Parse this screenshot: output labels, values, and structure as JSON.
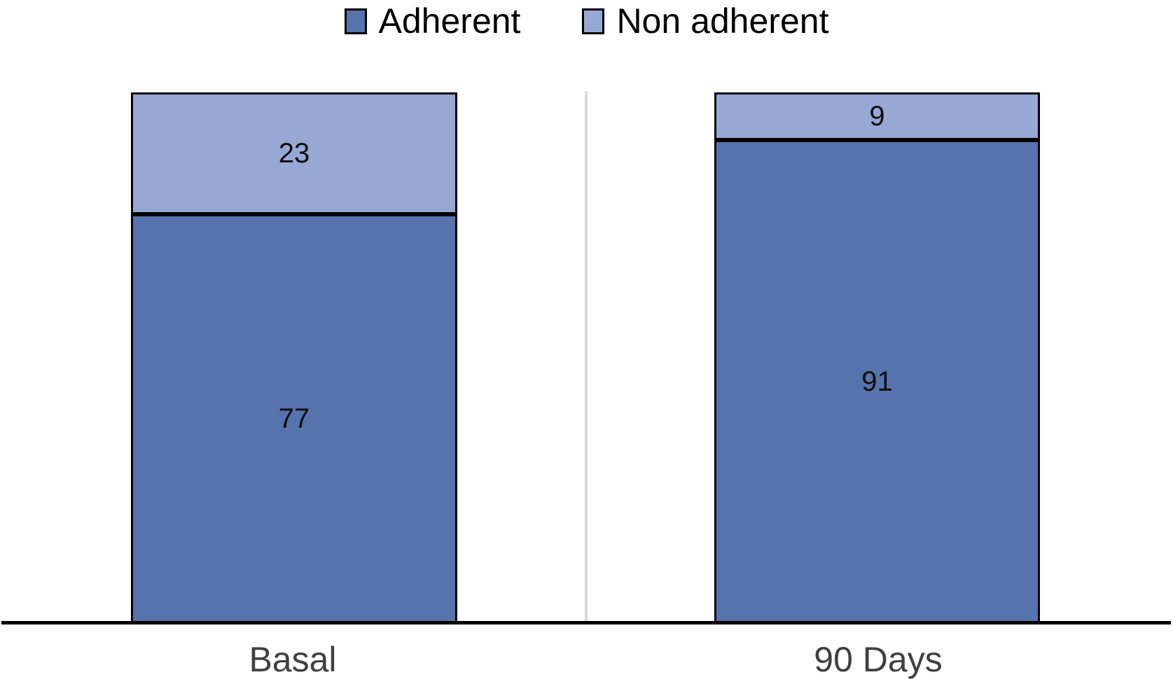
{
  "chart_data": {
    "type": "bar",
    "stacked": true,
    "orientation": "vertical",
    "title": "",
    "xlabel": "",
    "ylabel": "",
    "ylim": [
      0,
      100
    ],
    "grid": false,
    "legend_position": "top-center",
    "data_labels": true,
    "categories": [
      "Basal",
      "90 Days"
    ],
    "series": [
      {
        "name": "Adherent",
        "values": [
          77,
          91
        ],
        "color": "#5673AD"
      },
      {
        "name": "Non adherent",
        "values": [
          23,
          9
        ],
        "color": "#97A8D5"
      }
    ],
    "colors": {
      "segment_border": "#000000",
      "axis_line": "#000000",
      "category_divider": "#D9D9D9",
      "category_label": "#404040",
      "data_label": "#0d0d0d",
      "legend_text": "#000000",
      "background": "#ffffff"
    }
  }
}
